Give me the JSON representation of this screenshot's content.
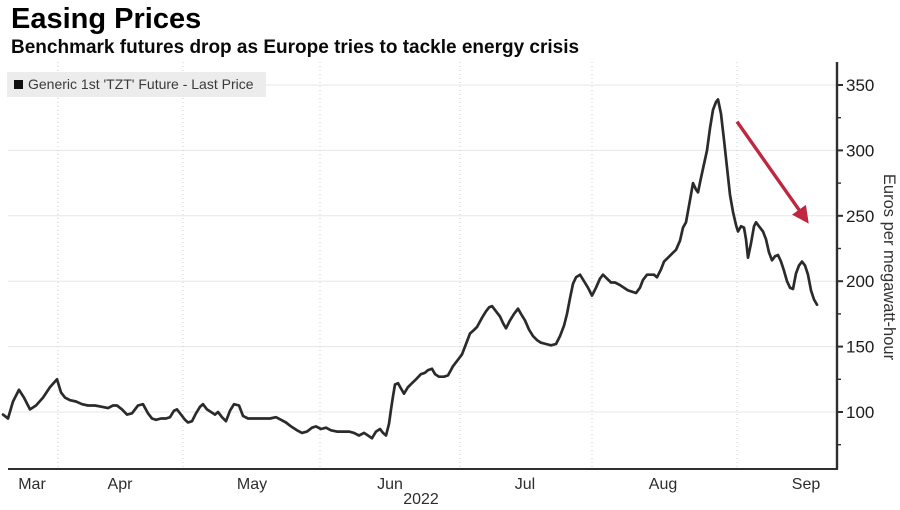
{
  "header": {
    "title": "Easing Prices",
    "subtitle": "Benchmark futures drop as Europe tries to tackle energy crisis"
  },
  "legend": {
    "label": "Generic 1st 'TZT' Future - Last Price",
    "marker_color": "#111111"
  },
  "chart_data": {
    "type": "line",
    "title": "Easing Prices",
    "subtitle": "Benchmark futures drop as Europe tries to tackle energy crisis",
    "series_name": "Generic 1st 'TZT' Future - Last Price",
    "ylabel": "Euros per megawatt-hour",
    "x_months": [
      "Mar",
      "Apr",
      "May",
      "Jun",
      "Jul",
      "Aug",
      "Sep"
    ],
    "year": "2022",
    "y_ticks": [
      100,
      150,
      200,
      250,
      300,
      350
    ],
    "y_minor_ticks": [
      75,
      125,
      175,
      225,
      275,
      325
    ],
    "ylim": [
      56,
      358
    ],
    "grid": "both",
    "legend_position": "top-left",
    "line_color": "#2b2b2b",
    "axis_color": "#2f2f2f",
    "arrow": {
      "color": "#bf2740",
      "from": {
        "x": 737,
        "value": 322
      },
      "to": {
        "x": 806,
        "value": 247
      }
    },
    "points": [
      [
        3,
        98
      ],
      [
        8,
        95
      ],
      [
        13,
        108
      ],
      [
        19,
        117
      ],
      [
        24,
        111
      ],
      [
        30,
        102
      ],
      [
        36,
        105
      ],
      [
        43,
        111
      ],
      [
        50,
        119
      ],
      [
        57,
        125
      ],
      [
        61,
        115
      ],
      [
        65,
        111
      ],
      [
        70,
        109
      ],
      [
        76,
        108
      ],
      [
        82,
        106
      ],
      [
        88,
        105
      ],
      [
        95,
        105
      ],
      [
        102,
        104
      ],
      [
        108,
        103
      ],
      [
        113,
        105
      ],
      [
        117,
        105
      ],
      [
        122,
        102
      ],
      [
        127,
        98
      ],
      [
        132,
        99
      ],
      [
        138,
        105
      ],
      [
        143,
        106
      ],
      [
        148,
        99
      ],
      [
        152,
        95
      ],
      [
        156,
        94
      ],
      [
        161,
        95
      ],
      [
        166,
        95
      ],
      [
        170,
        96
      ],
      [
        174,
        101
      ],
      [
        177,
        102
      ],
      [
        181,
        98
      ],
      [
        185,
        94
      ],
      [
        188,
        92
      ],
      [
        192,
        93
      ],
      [
        196,
        99
      ],
      [
        200,
        104
      ],
      [
        203,
        106
      ],
      [
        207,
        102
      ],
      [
        211,
        100
      ],
      [
        215,
        98
      ],
      [
        218,
        100
      ],
      [
        222,
        96
      ],
      [
        226,
        93
      ],
      [
        230,
        101
      ],
      [
        234,
        106
      ],
      [
        239,
        105
      ],
      [
        243,
        97
      ],
      [
        248,
        95
      ],
      [
        253,
        95
      ],
      [
        258,
        95
      ],
      [
        264,
        95
      ],
      [
        270,
        95
      ],
      [
        276,
        96
      ],
      [
        281,
        94
      ],
      [
        286,
        92
      ],
      [
        291,
        89
      ],
      [
        297,
        86
      ],
      [
        302,
        84
      ],
      [
        307,
        85
      ],
      [
        312,
        88
      ],
      [
        316,
        89
      ],
      [
        321,
        87
      ],
      [
        326,
        88
      ],
      [
        331,
        86
      ],
      [
        337,
        85
      ],
      [
        343,
        85
      ],
      [
        349,
        85
      ],
      [
        354,
        84
      ],
      [
        359,
        82
      ],
      [
        364,
        84
      ],
      [
        368,
        82
      ],
      [
        372,
        80
      ],
      [
        376,
        85
      ],
      [
        380,
        87
      ],
      [
        383,
        84
      ],
      [
        386,
        82
      ],
      [
        389,
        91
      ],
      [
        391,
        102
      ],
      [
        393,
        112
      ],
      [
        395,
        121
      ],
      [
        398,
        122
      ],
      [
        401,
        118
      ],
      [
        404,
        114
      ],
      [
        408,
        119
      ],
      [
        412,
        122
      ],
      [
        416,
        125
      ],
      [
        421,
        129
      ],
      [
        425,
        130
      ],
      [
        428,
        132
      ],
      [
        432,
        133
      ],
      [
        435,
        129
      ],
      [
        439,
        127
      ],
      [
        444,
        127
      ],
      [
        448,
        128
      ],
      [
        453,
        135
      ],
      [
        458,
        140
      ],
      [
        462,
        144
      ],
      [
        466,
        152
      ],
      [
        470,
        160
      ],
      [
        473,
        162
      ],
      [
        477,
        165
      ],
      [
        482,
        172
      ],
      [
        486,
        177
      ],
      [
        489,
        180
      ],
      [
        492,
        181
      ],
      [
        496,
        177
      ],
      [
        500,
        173
      ],
      [
        503,
        168
      ],
      [
        506,
        164
      ],
      [
        510,
        170
      ],
      [
        514,
        175
      ],
      [
        518,
        179
      ],
      [
        521,
        175
      ],
      [
        525,
        170
      ],
      [
        529,
        163
      ],
      [
        533,
        158
      ],
      [
        537,
        155
      ],
      [
        541,
        153
      ],
      [
        546,
        152
      ],
      [
        551,
        151
      ],
      [
        556,
        152
      ],
      [
        560,
        158
      ],
      [
        564,
        166
      ],
      [
        567,
        175
      ],
      [
        570,
        187
      ],
      [
        573,
        198
      ],
      [
        576,
        203
      ],
      [
        580,
        205
      ],
      [
        584,
        200
      ],
      [
        588,
        195
      ],
      [
        592,
        189
      ],
      [
        596,
        195
      ],
      [
        600,
        202
      ],
      [
        603,
        205
      ],
      [
        607,
        202
      ],
      [
        611,
        199
      ],
      [
        615,
        199
      ],
      [
        620,
        197
      ],
      [
        624,
        195
      ],
      [
        628,
        193
      ],
      [
        632,
        192
      ],
      [
        636,
        191
      ],
      [
        640,
        195
      ],
      [
        643,
        201
      ],
      [
        647,
        205
      ],
      [
        650,
        205
      ],
      [
        654,
        205
      ],
      [
        657,
        203
      ],
      [
        661,
        209
      ],
      [
        664,
        215
      ],
      [
        668,
        218
      ],
      [
        672,
        221
      ],
      [
        676,
        224
      ],
      [
        680,
        231
      ],
      [
        683,
        241
      ],
      [
        686,
        245
      ],
      [
        690,
        262
      ],
      [
        693,
        275
      ],
      [
        696,
        270
      ],
      [
        698,
        268
      ],
      [
        701,
        279
      ],
      [
        703,
        286
      ],
      [
        707,
        300
      ],
      [
        710,
        317
      ],
      [
        713,
        331
      ],
      [
        716,
        337
      ],
      [
        718,
        339
      ],
      [
        721,
        328
      ],
      [
        724,
        308
      ],
      [
        727,
        287
      ],
      [
        730,
        266
      ],
      [
        733,
        253
      ],
      [
        736,
        243
      ],
      [
        738,
        238
      ],
      [
        741,
        242
      ],
      [
        744,
        241
      ],
      [
        746,
        232
      ],
      [
        748,
        218
      ],
      [
        751,
        229
      ],
      [
        754,
        242
      ],
      [
        756,
        245
      ],
      [
        759,
        242
      ],
      [
        763,
        238
      ],
      [
        766,
        232
      ],
      [
        769,
        222
      ],
      [
        772,
        216
      ],
      [
        775,
        219
      ],
      [
        778,
        220
      ],
      [
        781,
        215
      ],
      [
        784,
        208
      ],
      [
        787,
        200
      ],
      [
        790,
        195
      ],
      [
        793,
        194
      ],
      [
        796,
        206
      ],
      [
        799,
        212
      ],
      [
        802,
        215
      ],
      [
        805,
        212
      ],
      [
        808,
        205
      ],
      [
        811,
        193
      ],
      [
        814,
        186
      ],
      [
        817,
        182
      ]
    ]
  }
}
